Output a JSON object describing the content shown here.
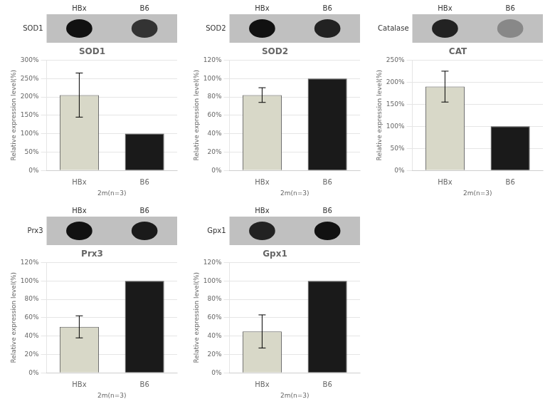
{
  "chart_data": [
    {
      "type": "bar",
      "title": "SOD1",
      "categories": [
        "HBx",
        "B6"
      ],
      "values": [
        205,
        100
      ],
      "errors": [
        60,
        0
      ],
      "colors": [
        "#d8d8c8",
        "#1a1a1a"
      ],
      "ylim": [
        0,
        300
      ],
      "yticks": [
        {
          "value": 0,
          "label": "0%"
        },
        {
          "value": 50,
          "label": "50%"
        },
        {
          "value": 100,
          "label": "100%"
        },
        {
          "value": 150,
          "label": "150%"
        },
        {
          "value": 200,
          "label": "200%"
        },
        {
          "value": 250,
          "label": "250%"
        },
        {
          "value": 300,
          "label": "300%"
        }
      ],
      "ylabel": "Relative expression level(%)",
      "xlabel": "2m(n=3)",
      "grid": true,
      "annotations": [
        {
          "text": "SOD1"
        },
        {
          "text": "HBx",
          "color": "#111111"
        },
        {
          "text": "B6",
          "color": "#333333"
        }
      ]
    },
    {
      "type": "bar",
      "title": "SOD2",
      "categories": [
        "HBx",
        "B6"
      ],
      "values": [
        82,
        100
      ],
      "errors": [
        8,
        0
      ],
      "colors": [
        "#d8d8c8",
        "#1a1a1a"
      ],
      "ylim": [
        0,
        120
      ],
      "yticks": [
        {
          "value": 0,
          "label": "0%"
        },
        {
          "value": 20,
          "label": "20%"
        },
        {
          "value": 40,
          "label": "40%"
        },
        {
          "value": 60,
          "label": "60%"
        },
        {
          "value": 80,
          "label": "80%"
        },
        {
          "value": 100,
          "label": "100%"
        },
        {
          "value": 120,
          "label": "120%"
        }
      ],
      "ylabel": "Relative expression level(%)",
      "xlabel": "2m(n=3)",
      "grid": true,
      "annotations": [
        {
          "text": "SOD2"
        },
        {
          "text": "HBx",
          "color": "#111111"
        },
        {
          "text": "B6",
          "color": "#222222"
        }
      ]
    },
    {
      "type": "bar",
      "title": "CAT",
      "categories": [
        "HBx",
        "B6"
      ],
      "values": [
        190,
        100
      ],
      "errors": [
        35,
        0
      ],
      "colors": [
        "#d8d8c8",
        "#1a1a1a"
      ],
      "ylim": [
        0,
        250
      ],
      "yticks": [
        {
          "value": 0,
          "label": "0%"
        },
        {
          "value": 50,
          "label": "50%"
        },
        {
          "value": 100,
          "label": "100%"
        },
        {
          "value": 150,
          "label": "150%"
        },
        {
          "value": 200,
          "label": "200%"
        },
        {
          "value": 250,
          "label": "250%"
        }
      ],
      "ylabel": "Relative expression level(%)",
      "xlabel": "2m(n=3)",
      "grid": true,
      "annotations": [
        {
          "text": "Catalase"
        },
        {
          "text": "HBx",
          "color": "#222222"
        },
        {
          "text": "B6",
          "color": "#888888"
        }
      ]
    },
    {
      "type": "bar",
      "title": "Prx3",
      "categories": [
        "HBx",
        "B6"
      ],
      "values": [
        50,
        100
      ],
      "errors": [
        12,
        0
      ],
      "colors": [
        "#d8d8c8",
        "#1a1a1a"
      ],
      "ylim": [
        0,
        120
      ],
      "yticks": [
        {
          "value": 0,
          "label": "0%"
        },
        {
          "value": 20,
          "label": "20%"
        },
        {
          "value": 40,
          "label": "40%"
        },
        {
          "value": 60,
          "label": "60%"
        },
        {
          "value": 80,
          "label": "80%"
        },
        {
          "value": 100,
          "label": "100%"
        },
        {
          "value": 120,
          "label": "120%"
        }
      ],
      "ylabel": "Relative expression level(%)",
      "xlabel": "2m(n=3)",
      "grid": true,
      "annotations": [
        {
          "text": "Prx3"
        },
        {
          "text": "HBx",
          "color": "#111111"
        },
        {
          "text": "B6",
          "color": "#1a1a1a"
        }
      ]
    },
    {
      "type": "bar",
      "title": "Gpx1",
      "categories": [
        "HBx",
        "B6"
      ],
      "values": [
        45,
        100
      ],
      "errors": [
        18,
        0
      ],
      "colors": [
        "#d8d8c8",
        "#1a1a1a"
      ],
      "ylim": [
        0,
        120
      ],
      "yticks": [
        {
          "value": 0,
          "label": "0%"
        },
        {
          "value": 20,
          "label": "20%"
        },
        {
          "value": 40,
          "label": "40%"
        },
        {
          "value": 60,
          "label": "60%"
        },
        {
          "value": 80,
          "label": "80%"
        },
        {
          "value": 100,
          "label": "100%"
        },
        {
          "value": 120,
          "label": "120%"
        }
      ],
      "ylabel": "Relative expression level(%)",
      "xlabel": "2m(n=3)",
      "grid": true,
      "annotations": [
        {
          "text": "Gpx1"
        },
        {
          "text": "HBx",
          "color": "#222222"
        },
        {
          "text": "B6",
          "color": "#111111"
        }
      ]
    }
  ]
}
